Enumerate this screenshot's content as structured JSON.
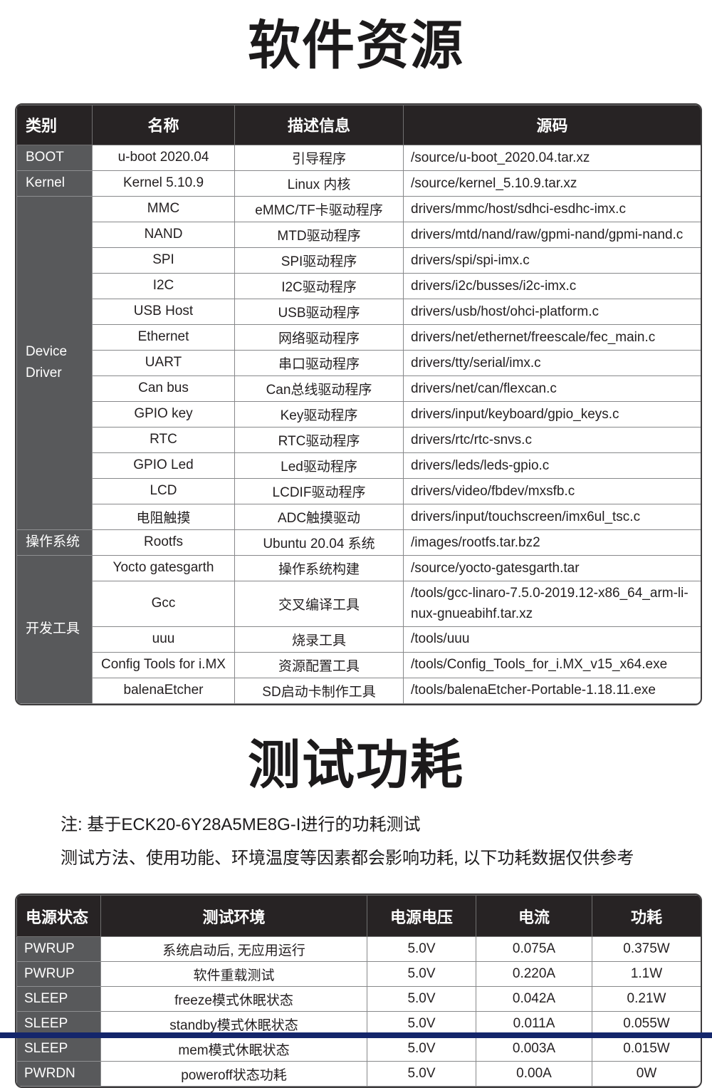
{
  "titles": {
    "software": "软件资源",
    "power": "测试功耗"
  },
  "notes": [
    "注: 基于ECK20-6Y28A5ME8G-I进行的功耗测试",
    "测试方法、使用功能、环境温度等因素都会影响功耗, 以下功耗数据仅供参考"
  ],
  "colors": {
    "header_bg": "#272324",
    "category_bg": "#58595b",
    "body_text": "#231f20",
    "accent_bar": "#14266b",
    "cell_border": "#87888a"
  },
  "software_table": {
    "headers": [
      "类别",
      "名称",
      "描述信息",
      "源码"
    ],
    "categories": [
      {
        "label": "BOOT",
        "rowspan": 1
      },
      {
        "label": "Kernel",
        "rowspan": 1
      },
      {
        "label": "Device\nDriver",
        "rowspan": 13
      },
      {
        "label": "操作系统",
        "rowspan": 1
      },
      {
        "label": "开发工具",
        "rowspan": 5
      }
    ],
    "rows": [
      {
        "name": "u-boot 2020.04",
        "desc": "引导程序",
        "source": "/source/u-boot_2020.04.tar.xz"
      },
      {
        "name": "Kernel 5.10.9",
        "desc": "Linux 内核",
        "source": "/source/kernel_5.10.9.tar.xz"
      },
      {
        "name": "MMC",
        "desc": "eMMC/TF卡驱动程序",
        "source": "drivers/mmc/host/sdhci-esdhc-imx.c"
      },
      {
        "name": "NAND",
        "desc": "MTD驱动程序",
        "source": "drivers/mtd/nand/raw/gpmi-nand/gpmi-nand.c"
      },
      {
        "name": "SPI",
        "desc": "SPI驱动程序",
        "source": "drivers/spi/spi-imx.c"
      },
      {
        "name": "I2C",
        "desc": "I2C驱动程序",
        "source": "drivers/i2c/busses/i2c-imx.c"
      },
      {
        "name": "USB Host",
        "desc": "USB驱动程序",
        "source": "drivers/usb/host/ohci-platform.c"
      },
      {
        "name": "Ethernet",
        "desc": "网络驱动程序",
        "source": "drivers/net/ethernet/freescale/fec_main.c"
      },
      {
        "name": "UART",
        "desc": "串口驱动程序",
        "source": "drivers/tty/serial/imx.c"
      },
      {
        "name": "Can bus",
        "desc": "Can总线驱动程序",
        "source": "drivers/net/can/flexcan.c"
      },
      {
        "name": "GPIO key",
        "desc": "Key驱动程序",
        "source": "drivers/input/keyboard/gpio_keys.c"
      },
      {
        "name": "RTC",
        "desc": "RTC驱动程序",
        "source": "drivers/rtc/rtc-snvs.c"
      },
      {
        "name": "GPIO Led",
        "desc": "Led驱动程序",
        "source": "drivers/leds/leds-gpio.c"
      },
      {
        "name": "LCD",
        "desc": "LCDIF驱动程序",
        "source": "drivers/video/fbdev/mxsfb.c"
      },
      {
        "name": "电阻触摸",
        "desc": "ADC触摸驱动",
        "source": "drivers/input/touchscreen/imx6ul_tsc.c"
      },
      {
        "name": "Rootfs",
        "desc": "Ubuntu 20.04 系统",
        "source": "/images/rootfs.tar.bz2"
      },
      {
        "name": "Yocto gatesgarth",
        "desc": "操作系统构建",
        "source": "/source/yocto-gatesgarth.tar"
      },
      {
        "name": "Gcc",
        "desc": "交叉编译工具",
        "source": "/tools/gcc-linaro-7.5.0-2019.12-x86_64_arm-li-\nnux-gnueabihf.tar.xz"
      },
      {
        "name": "uuu",
        "desc": "烧录工具",
        "source": "/tools/uuu"
      },
      {
        "name": "Config Tools for i.MX",
        "desc": "资源配置工具",
        "source": "/tools/Config_Tools_for_i.MX_v15_x64.exe"
      },
      {
        "name": "balenaEtcher",
        "desc": "SD启动卡制作工具",
        "source": "/tools/balenaEtcher-Portable-1.18.11.exe"
      }
    ]
  },
  "power_table": {
    "headers": [
      "电源状态",
      "测试环境",
      "电源电压",
      "电流",
      "功耗"
    ],
    "rows": [
      {
        "state": "PWRUP",
        "env": "系统启动后, 无应用运行",
        "voltage": "5.0V",
        "current": "0.075A",
        "power": "0.375W"
      },
      {
        "state": "PWRUP",
        "env": "软件重载测试",
        "voltage": "5.0V",
        "current": "0.220A",
        "power": "1.1W"
      },
      {
        "state": "SLEEP",
        "env": "freeze模式休眠状态",
        "voltage": "5.0V",
        "current": "0.042A",
        "power": "0.21W"
      },
      {
        "state": "SLEEP",
        "env": "standby模式休眠状态",
        "voltage": "5.0V",
        "current": "0.011A",
        "power": "0.055W"
      },
      {
        "state": "SLEEP",
        "env": "mem模式休眠状态",
        "voltage": "5.0V",
        "current": "0.003A",
        "power": "0.015W"
      },
      {
        "state": "PWRDN",
        "env": "poweroff状态功耗",
        "voltage": "5.0V",
        "current": "0.00A",
        "power": "0W"
      }
    ]
  }
}
